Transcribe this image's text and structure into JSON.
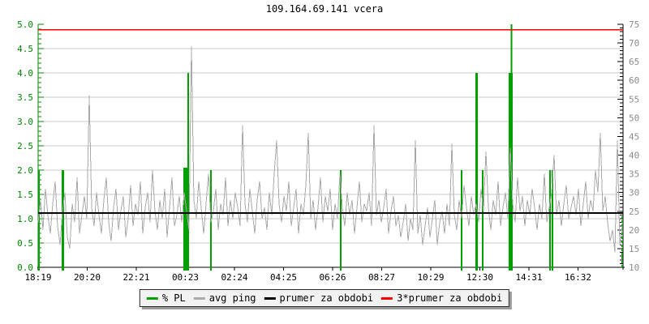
{
  "title": "109.164.69.141 vcera",
  "legend": {
    "items": [
      {
        "label": "% PL",
        "color": "#00a000"
      },
      {
        "label": "avg ping",
        "color": "#aaaaaa"
      },
      {
        "label": "prumer za obdobi",
        "color": "#000000"
      },
      {
        "label": "3*prumer za obdobi",
        "color": "#ff0000"
      }
    ]
  },
  "colors": {
    "pl_bar": "#00a000",
    "avg_ping": "#aaaaaa",
    "avg_line": "#000000",
    "avg3_line": "#ff0000",
    "grid": "#c9c9c9",
    "left_axis": "#008800",
    "right_axis_line": "#000000",
    "right_label": "#8c8c8c",
    "bottom_axis": "#000000",
    "x_label": "#000000"
  },
  "chart_data": {
    "type": "mixed-bar-line",
    "title": "109.164.69.141 vcera",
    "grid": "horizontal-only",
    "left_axis": {
      "series": "% PL",
      "min": 0,
      "max": 5,
      "tick_step": 0.5,
      "minor_step": 0.1,
      "tick_labels": [
        "0.0",
        "0.5",
        "1.0",
        "1.5",
        "2.0",
        "2.5",
        "3.0",
        "3.5",
        "4.0",
        "4.5",
        "5.0"
      ]
    },
    "right_axis": {
      "series": "avg ping (ms)",
      "min": 10,
      "max": 75,
      "tick_step": 5,
      "minor_step": 1,
      "tick_labels": [
        "10",
        "15",
        "20",
        "25",
        "30",
        "35",
        "40",
        "45",
        "50",
        "55",
        "60",
        "65",
        "70",
        "75"
      ]
    },
    "x_axis": {
      "labels": [
        "18:19",
        "20:20",
        "22:21",
        "00:23",
        "02:24",
        "04:25",
        "06:26",
        "08:27",
        "10:29",
        "12:30",
        "14:31",
        "16:32"
      ],
      "label_interval_min": 121,
      "span_min": 1442
    },
    "reference_lines": {
      "prumer_za_obdobi_ms": 24.5,
      "prumer3_za_obdobi_ms": 73.5
    },
    "pl_bars": {
      "name": "% PL",
      "unit": "%",
      "points": [
        {
          "t": 2,
          "pct": 2.0,
          "w": 2
        },
        {
          "t": 60,
          "pct": 2.0,
          "w": 3
        },
        {
          "t": 362,
          "pct": 2.05,
          "w": 5
        },
        {
          "t": 370,
          "pct": 4.0,
          "w": 2
        },
        {
          "t": 426,
          "pct": 2.0,
          "w": 2
        },
        {
          "t": 746,
          "pct": 2.0,
          "w": 2
        },
        {
          "t": 1044,
          "pct": 2.0,
          "w": 2
        },
        {
          "t": 1080,
          "pct": 4.0,
          "w": 3
        },
        {
          "t": 1096,
          "pct": 2.0,
          "w": 2
        },
        {
          "t": 1164,
          "pct": 4.0,
          "w": 5
        },
        {
          "t": 1167,
          "pct": 5.0,
          "w": 2
        },
        {
          "t": 1262,
          "pct": 2.0,
          "w": 2
        },
        {
          "t": 1268,
          "pct": 2.0,
          "w": 2
        },
        {
          "t": 1440,
          "pct": 1.05,
          "w": 2,
          "dashed": true
        }
      ]
    },
    "avg_ping": {
      "name": "avg ping",
      "unit": "ms",
      "t_start_min": 0,
      "t_step_min": 6,
      "values": [
        22,
        28,
        20,
        31,
        24,
        19,
        27,
        33,
        21,
        16,
        25,
        30,
        18,
        15,
        27,
        22,
        34,
        19,
        24,
        29,
        23,
        56,
        26,
        21,
        30,
        24,
        19,
        28,
        34,
        22,
        17,
        26,
        31,
        20,
        25,
        29,
        18,
        23,
        32,
        21,
        27,
        24,
        33,
        19,
        26,
        30,
        22,
        36,
        25,
        20,
        28,
        23,
        31,
        18,
        26,
        34,
        21,
        24,
        29,
        22,
        30,
        25,
        20,
        69,
        28,
        23,
        33,
        26,
        19,
        27,
        35,
        22,
        25,
        31,
        20,
        27,
        24,
        34,
        21,
        28,
        23,
        30,
        26,
        21,
        48,
        27,
        22,
        31,
        25,
        19,
        28,
        33,
        23,
        26,
        20,
        30,
        24,
        35,
        44,
        27,
        22,
        29,
        25,
        33,
        21,
        26,
        31,
        19,
        27,
        24,
        32,
        46,
        23,
        28,
        20,
        26,
        34,
        22,
        29,
        25,
        31,
        20,
        27,
        23,
        35,
        26,
        21,
        30,
        24,
        28,
        19,
        26,
        33,
        22,
        27,
        25,
        30,
        21,
        48,
        24,
        28,
        22,
        26,
        31,
        19,
        25,
        29,
        21,
        24,
        18,
        22,
        27,
        17,
        23,
        20,
        44,
        19,
        24,
        16,
        21,
        26,
        18,
        23,
        28,
        16,
        22,
        25,
        19,
        27,
        21,
        43,
        24,
        20,
        28,
        23,
        32,
        26,
        21,
        29,
        24,
        27,
        22,
        31,
        25,
        41,
        26,
        20,
        28,
        24,
        33,
        21,
        26,
        30,
        23,
        42,
        27,
        22,
        34,
        25,
        29,
        21,
        28,
        24,
        31,
        26,
        20,
        27,
        23,
        35,
        22,
        26,
        30,
        40,
        24,
        28,
        21,
        27,
        32,
        23,
        26,
        29,
        24,
        31,
        21,
        27,
        33,
        23,
        28,
        25,
        36,
        30,
        46,
        25,
        29,
        22,
        17,
        20,
        14,
        44,
        16,
        21
      ]
    }
  }
}
